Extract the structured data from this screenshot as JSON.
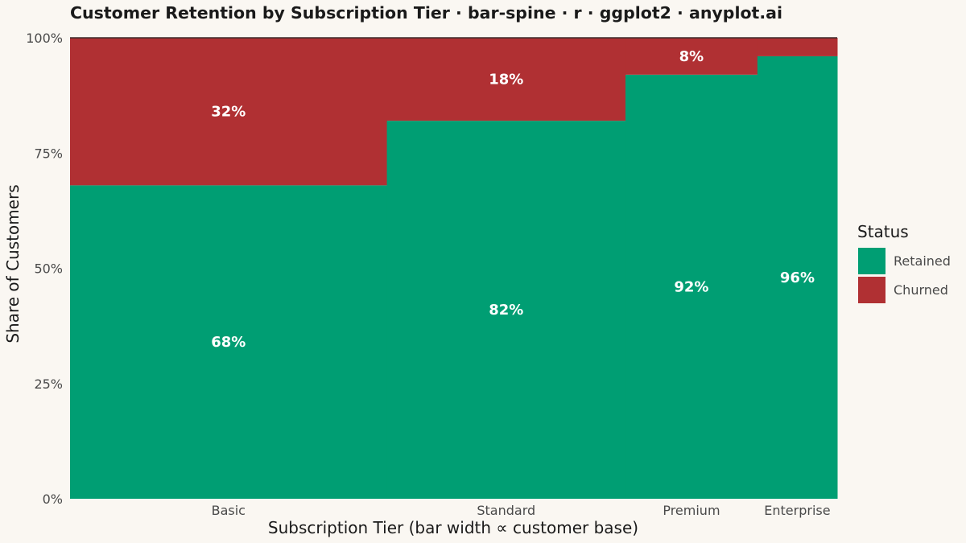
{
  "chart_data": {
    "type": "bar",
    "subtype": "spine",
    "title": "Customer Retention by Subscription Tier · bar-spine · r · ggplot2 · anyplot.ai",
    "xlabel": "Subscription Tier (bar width ∝ customer base)",
    "ylabel": "Share of Customers",
    "ylim": [
      0,
      1
    ],
    "y_ticks": [
      "0%",
      "25%",
      "50%",
      "75%",
      "100%"
    ],
    "y_tick_values": [
      0,
      0.25,
      0.5,
      0.75,
      1
    ],
    "categories": [
      "Basic",
      "Standard",
      "Premium",
      "Enterprise"
    ],
    "customer_base_share": [
      0.413,
      0.311,
      0.172,
      0.104
    ],
    "series": [
      {
        "name": "Retained",
        "color": "#009e73",
        "values": [
          0.68,
          0.82,
          0.92,
          0.96
        ]
      },
      {
        "name": "Churned",
        "color": "#b03033",
        "values": [
          0.32,
          0.18,
          0.08,
          0.04
        ]
      }
    ],
    "data_labels": {
      "Retained": [
        "68%",
        "82%",
        "92%",
        "96%"
      ],
      "Churned": [
        "32%",
        "18%",
        "8%",
        ""
      ]
    },
    "legend": {
      "title": "Status",
      "position": "right",
      "entries": [
        "Retained",
        "Churned"
      ]
    },
    "grid": false
  }
}
